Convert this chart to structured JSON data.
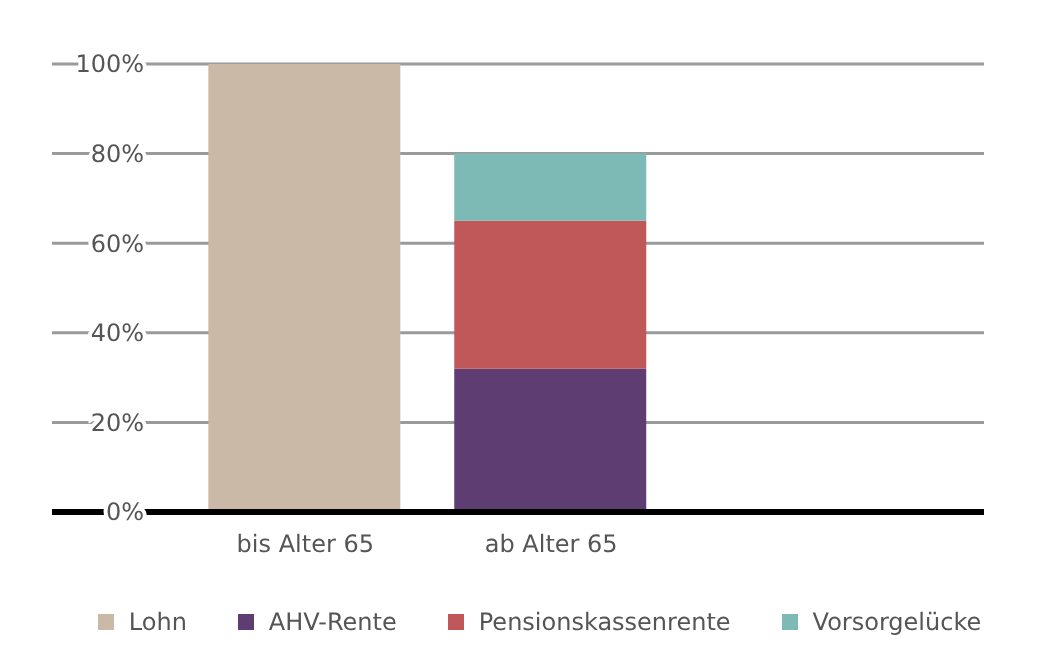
{
  "chart_data": {
    "type": "bar",
    "stacked": true,
    "categories": [
      "bis Alter 65",
      "ab Alter 65"
    ],
    "series": [
      {
        "name": "Lohn",
        "color": "#cbb9a8",
        "values": [
          100,
          null
        ]
      },
      {
        "name": "AHV-Rente",
        "color": "#5e3d72",
        "values": [
          null,
          32
        ]
      },
      {
        "name": "Pensionskassenrente",
        "color": "#c0585a",
        "values": [
          null,
          33
        ]
      },
      {
        "name": "Vorsorgelücke",
        "color": "#7dbab5",
        "values": [
          null,
          15
        ]
      }
    ],
    "ylim": [
      0,
      100
    ],
    "yticks": [
      {
        "value": 0,
        "label": "0%"
      },
      {
        "value": 20,
        "label": "20%"
      },
      {
        "value": 40,
        "label": "40%"
      },
      {
        "value": 60,
        "label": "60%"
      },
      {
        "value": 80,
        "label": "80%"
      },
      {
        "value": 100,
        "label": "100%"
      }
    ],
    "grid": "y",
    "legend": "bottom"
  }
}
